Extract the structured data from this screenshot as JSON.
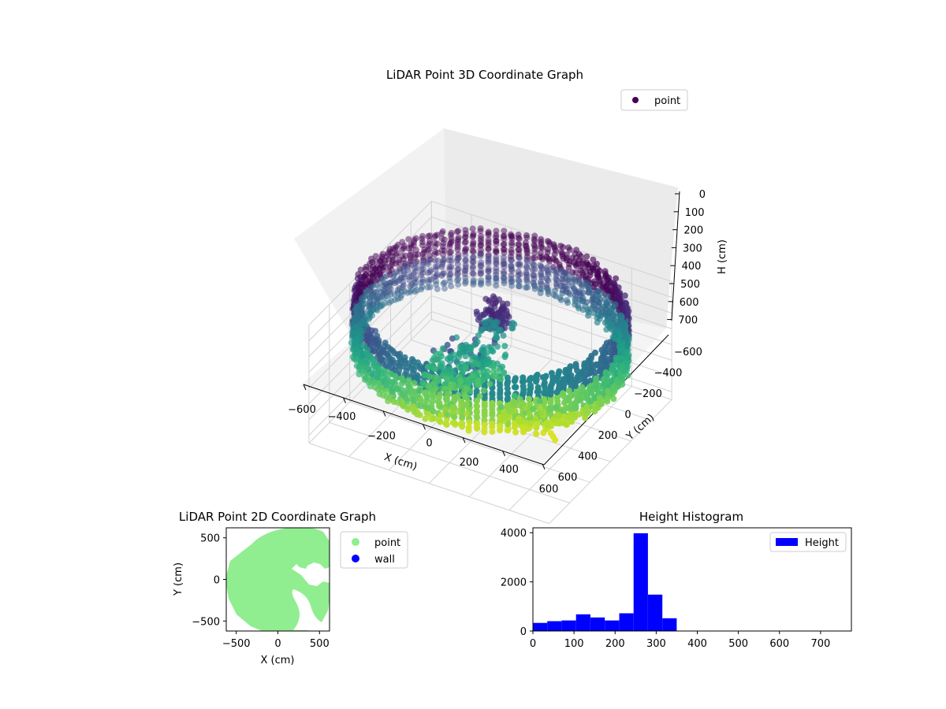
{
  "chart_data": [
    {
      "type": "scatter3d",
      "title": "LiDAR Point 3D Coordinate Graph",
      "xlabel": "X (cm)",
      "ylabel": "Y (cm)",
      "zlabel": "H (cm)",
      "xticks": [
        "−600",
        "−400",
        "−200",
        "0",
        "200",
        "400",
        "600"
      ],
      "yticks": [
        "−600",
        "−400",
        "−200",
        "0",
        "200",
        "400",
        "600"
      ],
      "zticks": [
        "0",
        "100",
        "200",
        "300",
        "400",
        "500",
        "600",
        "700"
      ],
      "xlim": [
        -600,
        600
      ],
      "ylim": [
        -600,
        600
      ],
      "zlim": [
        0,
        750
      ],
      "z_axis_inverted": true,
      "legend": {
        "entries": [
          "point"
        ],
        "position": "upper right"
      },
      "series": [
        {
          "name": "point",
          "colormap": "viridis",
          "legend_color": "#440154",
          "description": "ring-shaped wall of points around the origin at radius ~600 cm, height 0-350 cm, plus interior clusters",
          "ring_radius": 600,
          "ring_h_range": [
            0,
            350
          ]
        }
      ]
    },
    {
      "type": "scatter",
      "title": "LiDAR Point 2D Coordinate Graph",
      "xlabel": "X (cm)",
      "ylabel": "Y (cm)",
      "xticks": [
        "−500",
        "0",
        "500"
      ],
      "yticks": [
        "500",
        "0",
        "−500"
      ],
      "xlim": [
        -620,
        620
      ],
      "ylim": [
        -620,
        620
      ],
      "legend": {
        "entries": [
          "point",
          "wall"
        ],
        "position": "outside right"
      },
      "series": [
        {
          "name": "point",
          "color": "#90ee90"
        },
        {
          "name": "wall",
          "color": "#0000ff"
        }
      ]
    },
    {
      "type": "bar",
      "title": "Height Histogram",
      "xticks": [
        "0",
        "100",
        "200",
        "300",
        "400",
        "500",
        "600",
        "700"
      ],
      "yticks": [
        "0",
        "2000",
        "4000"
      ],
      "xlim": [
        0,
        775
      ],
      "ylim": [
        0,
        4200
      ],
      "legend": {
        "entries": [
          "Height"
        ],
        "position": "upper right"
      },
      "bin_width": 35,
      "bin_edges_start": 0,
      "values": [
        330,
        400,
        430,
        680,
        550,
        430,
        720,
        3980,
        1480,
        520
      ],
      "series": [
        {
          "name": "Height",
          "color": "#0000ff"
        }
      ]
    }
  ]
}
